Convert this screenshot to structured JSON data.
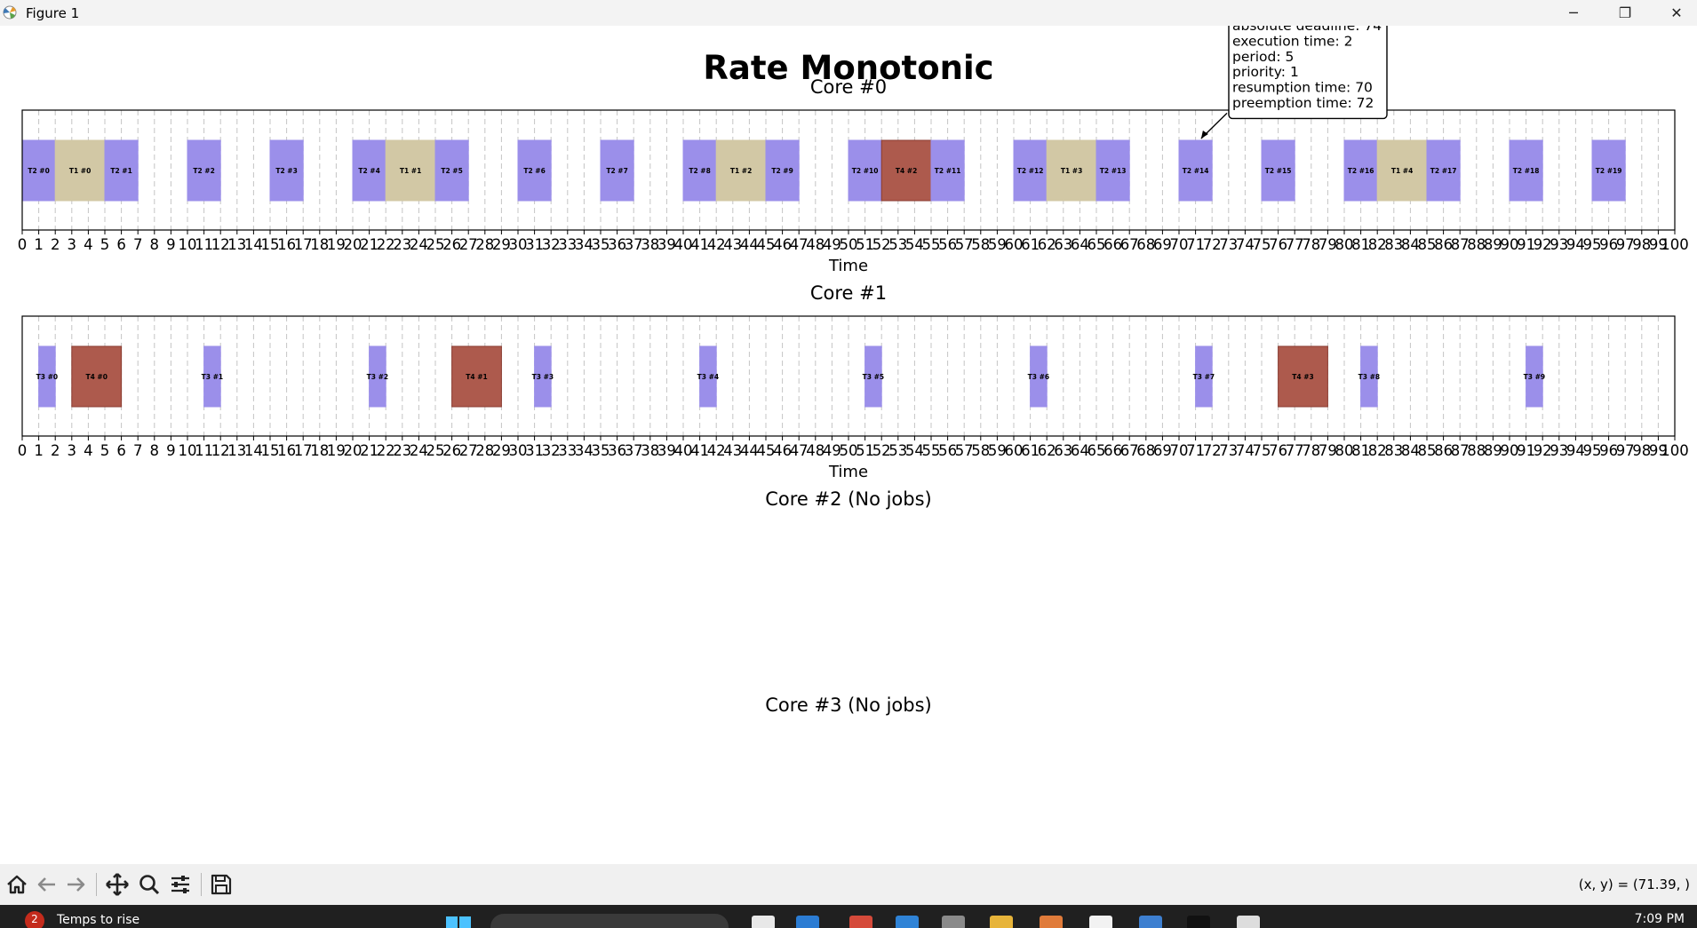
{
  "window": {
    "title": "Figure 1",
    "minimize_glyph": "─",
    "maximize_glyph": "❐",
    "close_glyph": "✕"
  },
  "figure": {
    "suptitle": "Rate Monotonic"
  },
  "colors": {
    "T1": "#d2c8a5",
    "T2": "#9b8fea",
    "T3": "#9b8fea",
    "T4": "#ad5a4d",
    "T4_edge": "#8a3b30"
  },
  "chart_data": [
    {
      "type": "gantt",
      "title": "Core #0",
      "xlabel": "Time",
      "xlim": [
        0,
        100
      ],
      "xticks_step": 1,
      "grid": "vertical dashed",
      "jobs": [
        {
          "label": "T2 #0",
          "task": "T2",
          "start": 0,
          "end": 2
        },
        {
          "label": "T1 #0",
          "task": "T1",
          "start": 2,
          "end": 5
        },
        {
          "label": "T2 #1",
          "task": "T2",
          "start": 5,
          "end": 7
        },
        {
          "label": "T2 #2",
          "task": "T2",
          "start": 10,
          "end": 12
        },
        {
          "label": "T2 #3",
          "task": "T2",
          "start": 15,
          "end": 17
        },
        {
          "label": "T2 #4",
          "task": "T2",
          "start": 20,
          "end": 22
        },
        {
          "label": "T1 #1",
          "task": "T1",
          "start": 22,
          "end": 25
        },
        {
          "label": "T2 #5",
          "task": "T2",
          "start": 25,
          "end": 27
        },
        {
          "label": "T2 #6",
          "task": "T2",
          "start": 30,
          "end": 32
        },
        {
          "label": "T2 #7",
          "task": "T2",
          "start": 35,
          "end": 37
        },
        {
          "label": "T2 #8",
          "task": "T2",
          "start": 40,
          "end": 42
        },
        {
          "label": "T1 #2",
          "task": "T1",
          "start": 42,
          "end": 45
        },
        {
          "label": "T2 #9",
          "task": "T2",
          "start": 45,
          "end": 47
        },
        {
          "label": "T2 #10",
          "task": "T2",
          "start": 50,
          "end": 52
        },
        {
          "label": "T4 #2",
          "task": "T4",
          "start": 52,
          "end": 55
        },
        {
          "label": "T2 #11",
          "task": "T2",
          "start": 55,
          "end": 57
        },
        {
          "label": "T2 #12",
          "task": "T2",
          "start": 60,
          "end": 62
        },
        {
          "label": "T1 #3",
          "task": "T1",
          "start": 62,
          "end": 65
        },
        {
          "label": "T2 #13",
          "task": "T2",
          "start": 65,
          "end": 67
        },
        {
          "label": "T2 #14",
          "task": "T2",
          "start": 70,
          "end": 72
        },
        {
          "label": "T2 #15",
          "task": "T2",
          "start": 75,
          "end": 77
        },
        {
          "label": "T2 #16",
          "task": "T2",
          "start": 80,
          "end": 82
        },
        {
          "label": "T1 #4",
          "task": "T1",
          "start": 82,
          "end": 85
        },
        {
          "label": "T2 #17",
          "task": "T2",
          "start": 85,
          "end": 87
        },
        {
          "label": "T2 #18",
          "task": "T2",
          "start": 90,
          "end": 92
        },
        {
          "label": "T2 #19",
          "task": "T2",
          "start": 95,
          "end": 97
        }
      ],
      "tooltip": {
        "target_time": 71.5,
        "lines": [
          "absolute deadline: 74",
          "execution time: 2",
          "period: 5",
          "priority: 1",
          "resumption time: 70",
          "preemption time: 72"
        ]
      }
    },
    {
      "type": "gantt",
      "title": "Core #1",
      "xlabel": "Time",
      "xlim": [
        0,
        100
      ],
      "xticks_step": 1,
      "grid": "vertical dashed",
      "jobs": [
        {
          "label": "T3 #0",
          "task": "T3",
          "start": 1,
          "end": 2
        },
        {
          "label": "T4 #0",
          "task": "T4",
          "start": 3,
          "end": 6
        },
        {
          "label": "T3 #1",
          "task": "T3",
          "start": 11,
          "end": 12
        },
        {
          "label": "T3 #2",
          "task": "T3",
          "start": 21,
          "end": 22
        },
        {
          "label": "T4 #1",
          "task": "T4",
          "start": 26,
          "end": 29
        },
        {
          "label": "T3 #3",
          "task": "T3",
          "start": 31,
          "end": 32
        },
        {
          "label": "T3 #4",
          "task": "T3",
          "start": 41,
          "end": 42
        },
        {
          "label": "T3 #5",
          "task": "T3",
          "start": 51,
          "end": 52
        },
        {
          "label": "T3 #6",
          "task": "T3",
          "start": 61,
          "end": 62
        },
        {
          "label": "T3 #7",
          "task": "T3",
          "start": 71,
          "end": 72
        },
        {
          "label": "T4 #3",
          "task": "T4",
          "start": 76,
          "end": 79
        },
        {
          "label": "T3 #8",
          "task": "T3",
          "start": 81,
          "end": 82
        },
        {
          "label": "T3 #9",
          "task": "T3",
          "start": 91,
          "end": 92
        }
      ]
    },
    {
      "type": "gantt",
      "title": "Core #2 (No jobs)",
      "jobs": []
    },
    {
      "type": "gantt",
      "title": "Core #3 (No jobs)",
      "jobs": []
    }
  ],
  "toolbar": {
    "buttons": [
      "home-icon",
      "back-arrow-icon",
      "forward-arrow-icon",
      "pan-icon",
      "zoom-icon",
      "configure-subplots-icon",
      "save-icon"
    ],
    "coords": "(x, y) = (71.39, )"
  },
  "taskbar": {
    "weather_badge": "2",
    "weather_text": "Temps to rise",
    "clock": "7:09 PM"
  }
}
